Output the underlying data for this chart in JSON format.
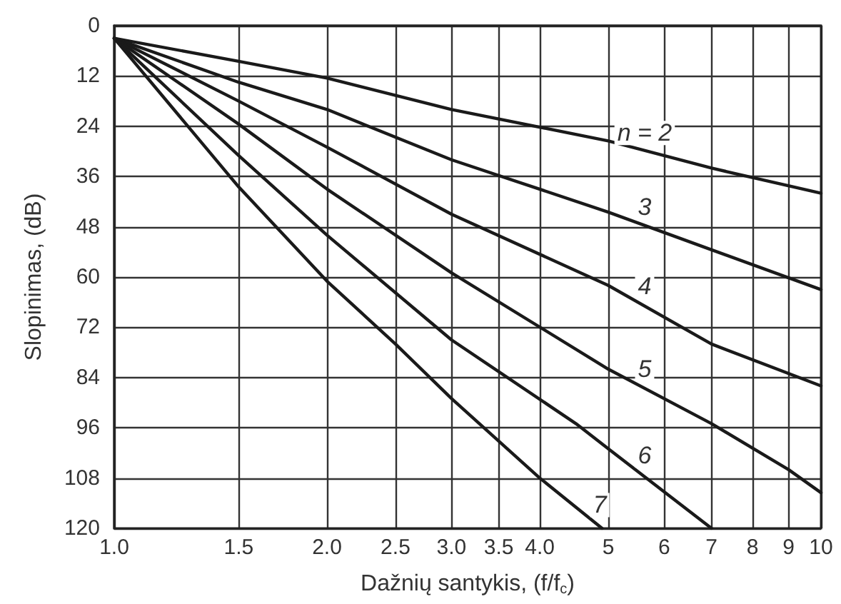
{
  "chart_data": {
    "type": "line",
    "xlabel": "Dažnių santykis, (f/f$_{c}$)",
    "ylabel": "Slopinimas, (dB)",
    "log": "x",
    "grid": true,
    "marker": "none",
    "line_style": "solid",
    "xlim": [
      1,
      10
    ],
    "xticks": [
      {
        "value": 1,
        "label": "1.0"
      },
      1.5,
      {
        "value": 2,
        "label": "2.0"
      },
      2.5,
      {
        "value": 3,
        "label": "3.0"
      },
      3.5,
      {
        "value": 4,
        "label": "4.0"
      },
      5,
      6,
      7,
      8,
      9,
      10
    ],
    "ylim": [
      120,
      0
    ],
    "yticks": [
      0,
      12,
      24,
      36,
      48,
      60,
      72,
      84,
      96,
      108,
      120
    ],
    "series": [
      {
        "name": "n = 2",
        "color": "#1a1a1a",
        "x": [
          1,
          1.5,
          2,
          3,
          5,
          7,
          10
        ],
        "values": [
          3,
          8.5,
          12.5,
          20,
          27.5,
          34,
          40
        ]
      },
      {
        "name": "3",
        "color": "#1a1a1a",
        "x": [
          1,
          1.5,
          2,
          3,
          5,
          7,
          10
        ],
        "values": [
          3,
          13.5,
          20,
          32,
          44.5,
          53.5,
          63
        ]
      },
      {
        "name": "4",
        "color": "#1a1a1a",
        "x": [
          1,
          1.5,
          2,
          3,
          5,
          7,
          10
        ],
        "values": [
          3,
          18,
          29,
          45,
          62,
          76,
          86
        ]
      },
      {
        "name": "5",
        "color": "#1a1a1a",
        "x": [
          1,
          1.5,
          2,
          3,
          5,
          7,
          9,
          10
        ],
        "values": [
          3,
          23.5,
          39,
          59,
          82,
          95,
          106,
          111.5
        ]
      },
      {
        "name": "6",
        "color": "#1a1a1a",
        "x": [
          1,
          1.5,
          2,
          3,
          4.5,
          5,
          7
        ],
        "values": [
          3,
          31,
          50,
          75,
          95,
          101,
          120
        ]
      },
      {
        "name": "7",
        "color": "#1a1a1a",
        "x": [
          1,
          1.5,
          2,
          2.5,
          3,
          4,
          4.9
        ],
        "values": [
          3,
          38.5,
          61,
          76,
          89,
          108,
          120
        ]
      }
    ]
  }
}
